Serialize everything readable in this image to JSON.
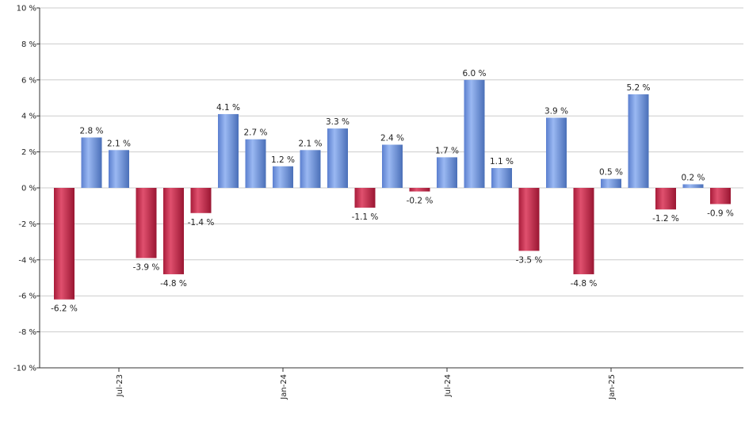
{
  "chart_data": {
    "type": "bar",
    "title": "",
    "xlabel": "",
    "ylabel": "",
    "ylim": [
      -10,
      10
    ],
    "yticks": [
      -10,
      -8,
      -6,
      -4,
      -2,
      0,
      2,
      4,
      6,
      8,
      10
    ],
    "ytick_suffix": " %",
    "grid": true,
    "values": [
      -6.2,
      2.8,
      2.1,
      -3.9,
      -4.8,
      -1.4,
      4.1,
      2.7,
      1.2,
      2.1,
      3.3,
      -1.1,
      2.4,
      -0.2,
      1.7,
      6.0,
      1.1,
      -3.5,
      3.9,
      -4.8,
      0.5,
      5.2,
      -1.2,
      0.2,
      -0.9
    ],
    "value_labels": [
      "-6.2 %",
      "2.8 %",
      "2.1 %",
      "-3.9 %",
      "-4.8 %",
      "-1.4 %",
      "4.1 %",
      "2.7 %",
      "1.2 %",
      "2.1 %",
      "3.3 %",
      "-1.1 %",
      "2.4 %",
      "-0.2 %",
      "1.7 %",
      "6.0 %",
      "1.1 %",
      "-3.5 %",
      "3.9 %",
      "-4.8 %",
      "0.5 %",
      "5.2 %",
      "-1.2 %",
      "0.2 %",
      "-0.9 %"
    ],
    "x_tick_labels": [
      {
        "label": "Jul-23",
        "bar_index": 2
      },
      {
        "label": "Jan-24",
        "bar_index": 8
      },
      {
        "label": "Jul-24",
        "bar_index": 14
      },
      {
        "label": "Jan-25",
        "bar_index": 20
      }
    ],
    "colors": {
      "positive": "#7a9de6",
      "negative": "#c8284a",
      "grid": "#cccccc",
      "axis": "#333333"
    }
  }
}
